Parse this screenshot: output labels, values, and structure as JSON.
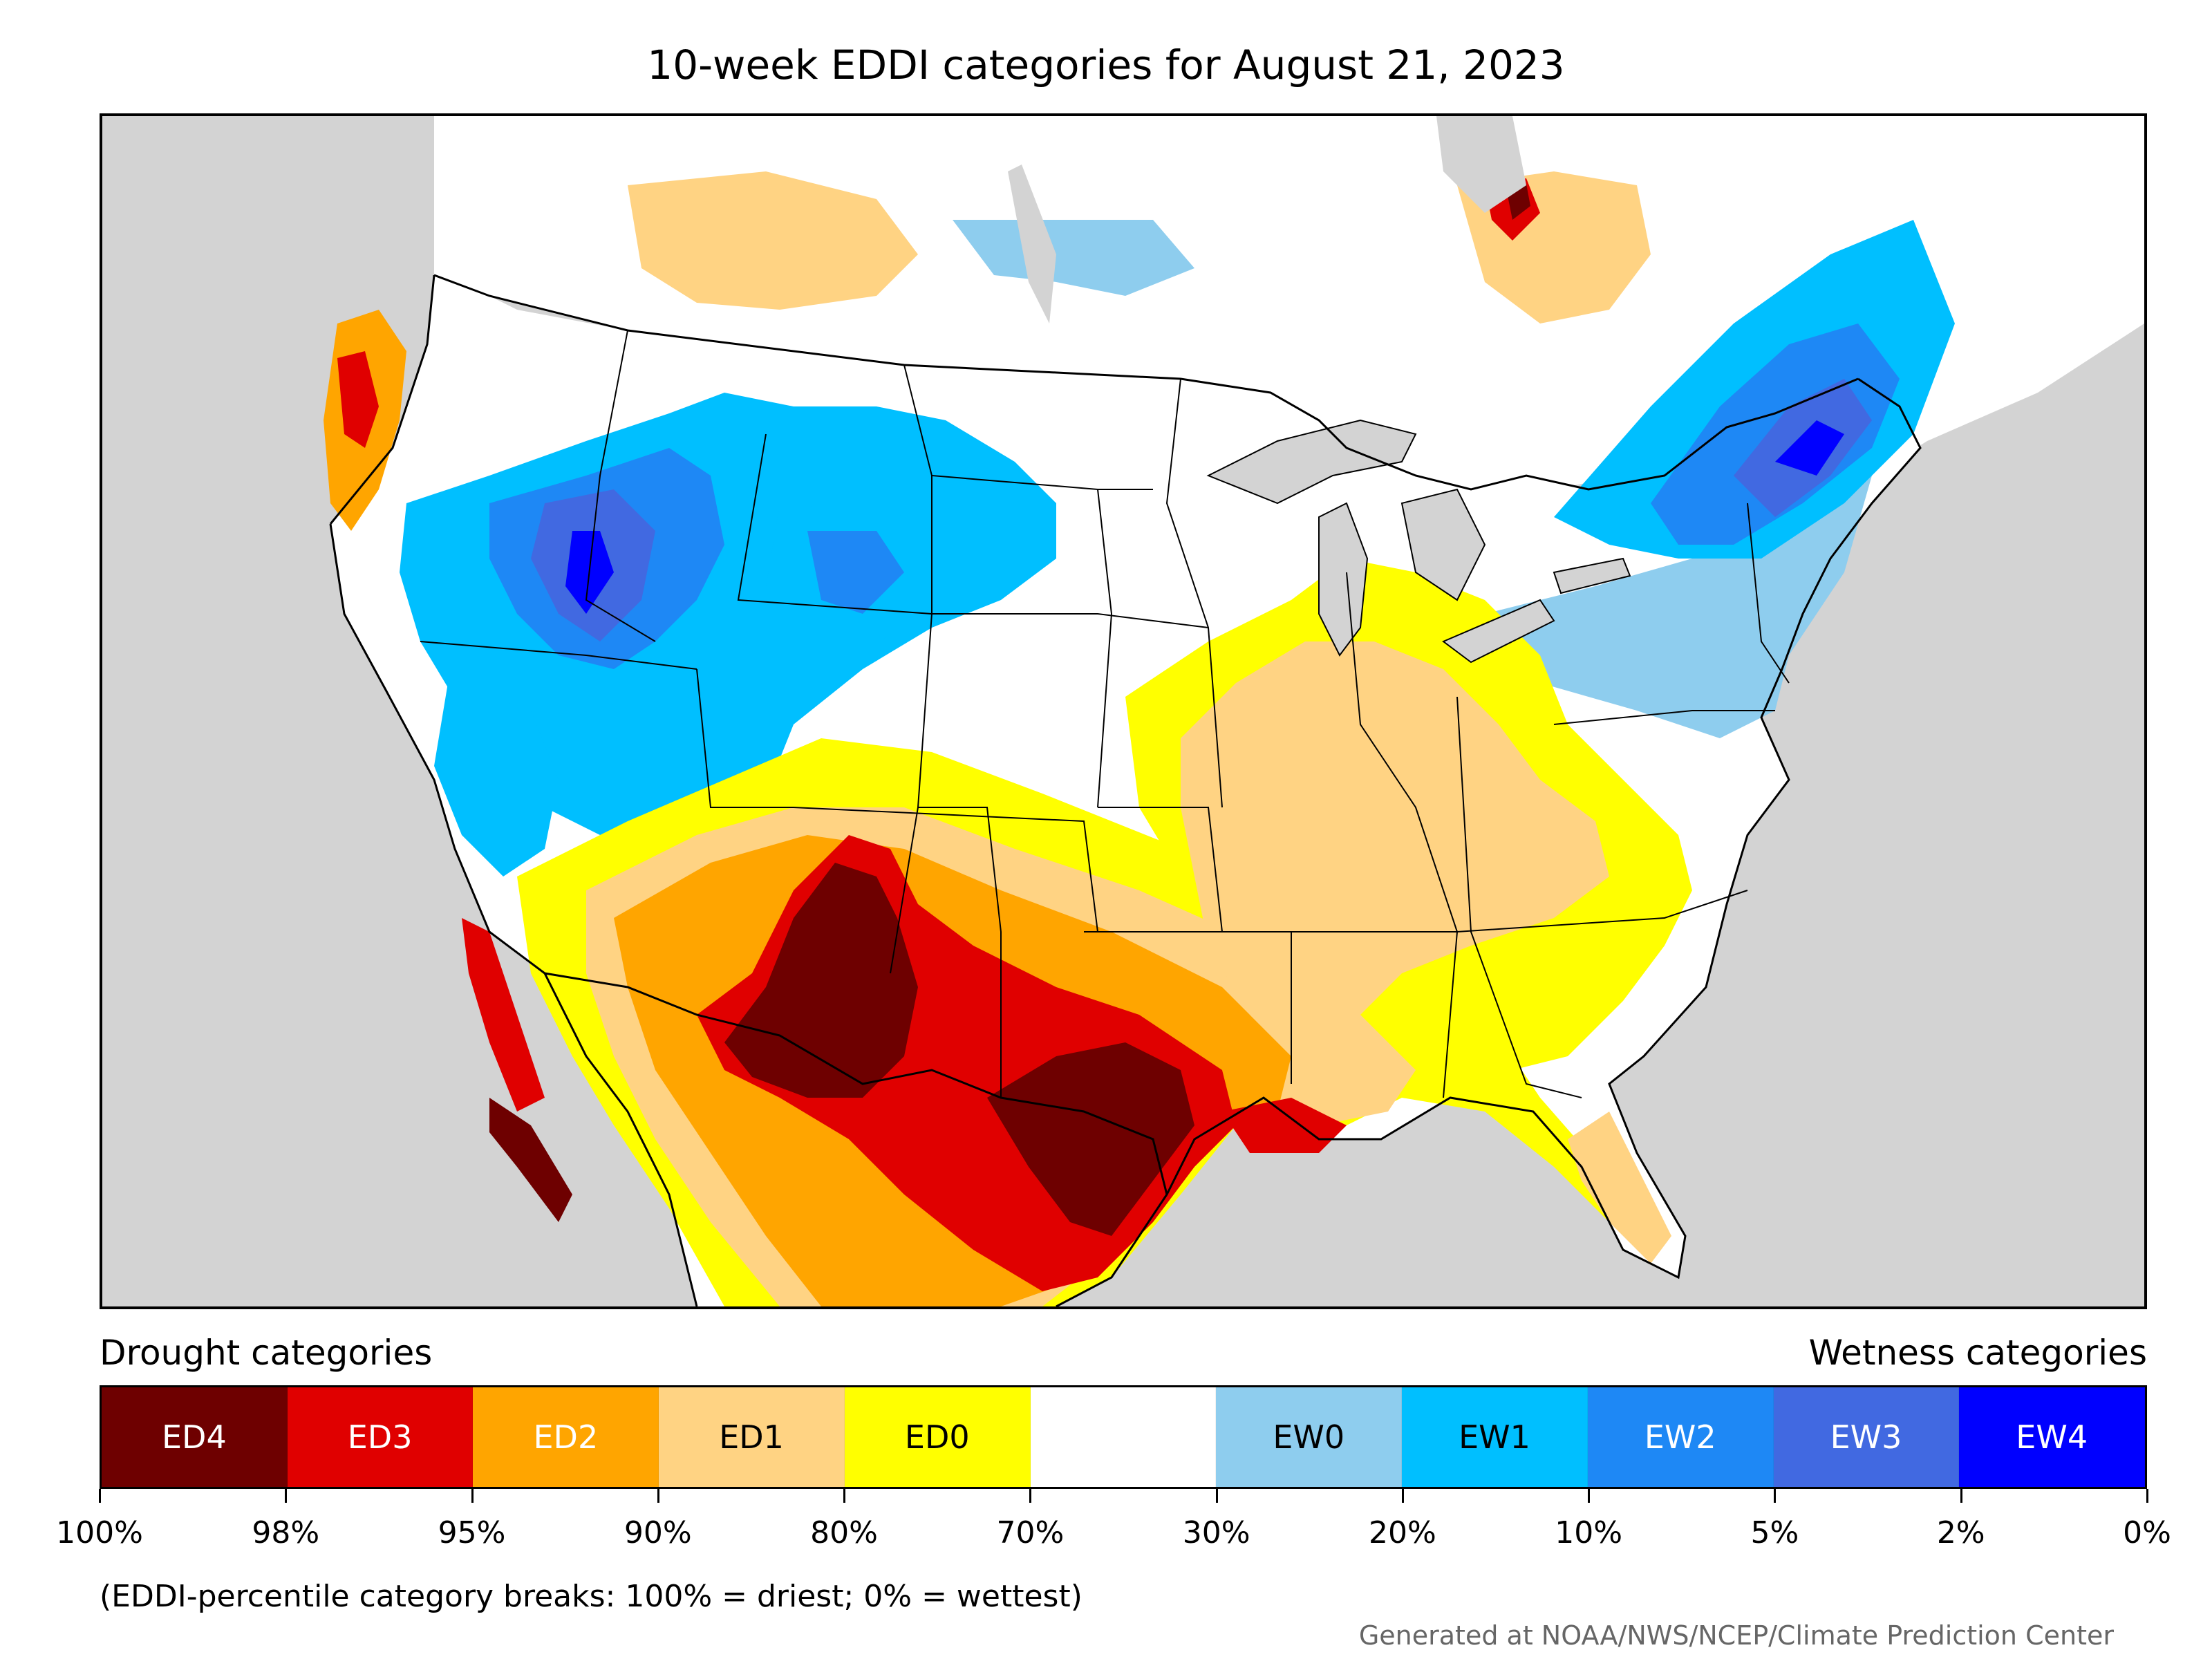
{
  "title": "10-week EDDI categories for August 21, 2023",
  "map": {
    "region": "contiguous-united-states",
    "background_color": "#d3d3d3",
    "no_category_color": "#ffffff"
  },
  "legend": {
    "drought_heading": "Drought categories",
    "wetness_heading": "Wetness categories",
    "categories": [
      {
        "label": "ED4",
        "color": "#6e0000",
        "text_color": "#ffffff"
      },
      {
        "label": "ED3",
        "color": "#e00000",
        "text_color": "#ffffff"
      },
      {
        "label": "ED2",
        "color": "#ffa500",
        "text_color": "#ffffff"
      },
      {
        "label": "ED1",
        "color": "#ffd383",
        "text_color": "#000000"
      },
      {
        "label": "ED0",
        "color": "#ffff00",
        "text_color": "#000000"
      },
      {
        "label": "",
        "color": "#ffffff",
        "text_color": "#000000"
      },
      {
        "label": "EW0",
        "color": "#8ecdee",
        "text_color": "#000000"
      },
      {
        "label": "EW1",
        "color": "#00bfff",
        "text_color": "#000000"
      },
      {
        "label": "EW2",
        "color": "#1e88f5",
        "text_color": "#ffffff"
      },
      {
        "label": "EW3",
        "color": "#4169e1",
        "text_color": "#ffffff"
      },
      {
        "label": "EW4",
        "color": "#0000ff",
        "text_color": "#ffffff"
      }
    ],
    "breaks": [
      "100%",
      "98%",
      "95%",
      "90%",
      "80%",
      "70%",
      "30%",
      "20%",
      "10%",
      "5%",
      "2%",
      "0%"
    ]
  },
  "footnote": "(EDDI-percentile category breaks: 100% = driest; 0% = wettest)",
  "credit": "Generated at NOAA/NWS/NCEP/Climate Prediction Center"
}
